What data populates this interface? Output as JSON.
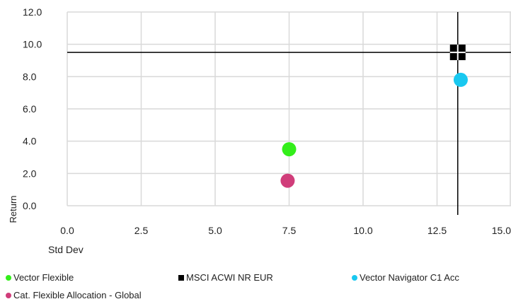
{
  "chart_data": {
    "type": "scatter",
    "xlabel": "Std Dev",
    "ylabel": "Return",
    "xlim": [
      0,
      15
    ],
    "ylim": [
      0,
      12
    ],
    "x_ticks": [
      "0.0",
      "2.5",
      "5.0",
      "7.5",
      "10.0",
      "12.5",
      "15.0"
    ],
    "y_ticks": [
      "0.0",
      "2.0",
      "4.0",
      "6.0",
      "8.0",
      "10.0",
      "12.0"
    ],
    "grid": true,
    "legend_position": "bottom",
    "crosshair": {
      "x": 13.2,
      "y": 9.5
    },
    "series": [
      {
        "name": "Vector Flexible",
        "marker": "circle",
        "color": "#33ee1a",
        "x": 7.5,
        "y": 3.5
      },
      {
        "name": "MSCI ACWI NR EUR",
        "marker": "square",
        "color": "#000000",
        "x": 13.2,
        "y": 9.5
      },
      {
        "name": "Vector Navigator C1 Acc",
        "marker": "circle",
        "color": "#19c8f0",
        "x": 13.3,
        "y": 7.8
      },
      {
        "name": "Cat. Flexible Allocation - Global",
        "marker": "circle",
        "color": "#d03d7a",
        "x": 7.45,
        "y": 1.55
      }
    ]
  }
}
